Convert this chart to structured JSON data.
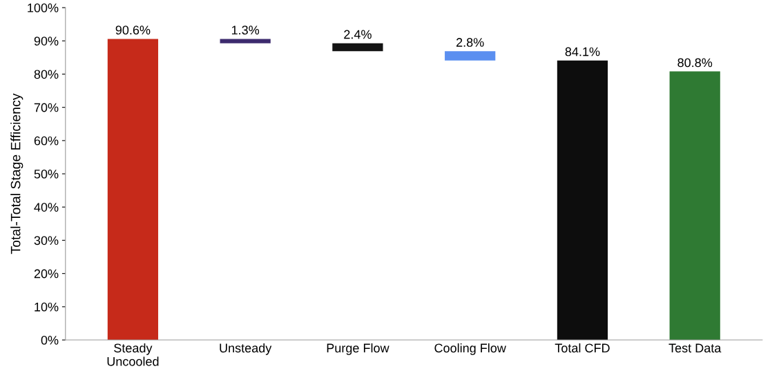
{
  "chart_data": {
    "type": "bar",
    "ylabel": "Total-Total Stage Efficiency",
    "categories": [
      "Steady\nUncooled",
      "Unsteady",
      "Purge Flow",
      "Cooling Flow",
      "Total CFD",
      "Test Data"
    ],
    "values": [
      90.6,
      1.3,
      2.4,
      2.8,
      84.1,
      80.8
    ],
    "base": [
      0,
      89.3,
      86.9,
      84.1,
      0,
      0
    ],
    "colors": [
      "#c62a1a",
      "#3d2b6e",
      "#141414",
      "#5b8ff0",
      "#0d0d0d",
      "#2f7a33"
    ],
    "value_labels": [
      "90.6%",
      "1.3%",
      "2.4%",
      "2.8%",
      "84.1%",
      "80.8%"
    ],
    "ylim": [
      0,
      100
    ],
    "yticks": [
      {
        "value": 0,
        "label": "0%"
      },
      {
        "value": 10,
        "label": "10%"
      },
      {
        "value": 20,
        "label": "20%"
      },
      {
        "value": 30,
        "label": "30%"
      },
      {
        "value": 40,
        "label": "40%"
      },
      {
        "value": 50,
        "label": "50%"
      },
      {
        "value": 60,
        "label": "60%"
      },
      {
        "value": 70,
        "label": "70%"
      },
      {
        "value": 80,
        "label": "80%"
      },
      {
        "value": 90,
        "label": "90%"
      },
      {
        "value": 100,
        "label": "100%"
      }
    ],
    "grid": false
  }
}
